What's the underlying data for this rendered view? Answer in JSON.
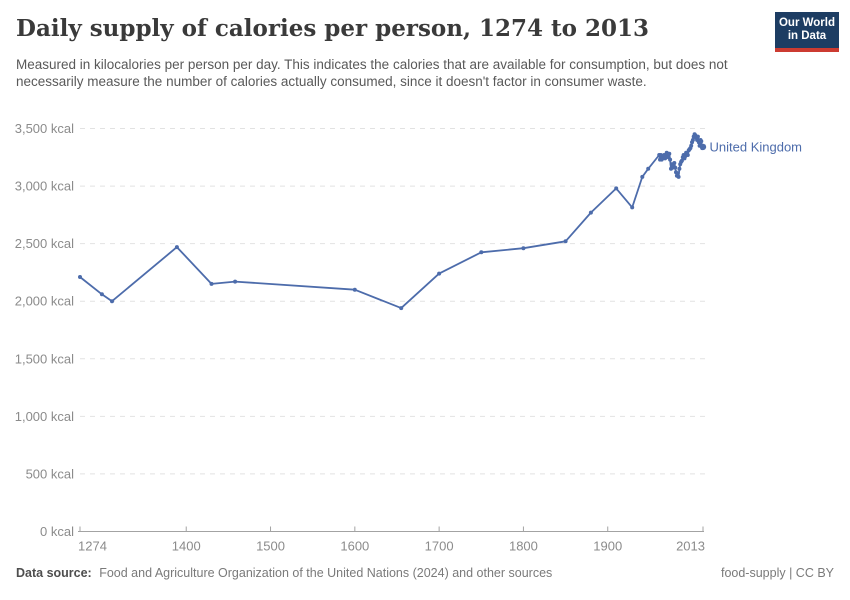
{
  "header": {
    "title": "Daily supply of calories per person, 1274 to 2013",
    "subtitle": "Measured in kilocalories per person per day. This indicates the calories that are available for consumption, but does not necessarily measure the number of calories actually consumed, since it doesn't factor in consumer waste.",
    "logo": {
      "line1": "Our World",
      "line2": "in Data"
    }
  },
  "footer": {
    "source_label": "Data source:",
    "source_text": "Food and Agriculture Organization of the United Nations (2024) and other sources",
    "attribution": "food-supply | CC BY"
  },
  "colors": {
    "line": "#4d6cab",
    "logo_background": "#1d3d63",
    "logo_stripe": "#cc3b31",
    "gridline": "#e2e2e2",
    "axis": "#a3a3a3",
    "tick_label": "#8b8b8b"
  },
  "chart_data": {
    "type": "line",
    "title": "Daily supply of calories per person, 1274 to 2013",
    "xlabel": "",
    "ylabel": "kcal",
    "xlim": [
      1274,
      2013
    ],
    "ylim": [
      0,
      3500
    ],
    "grid": "horizontal-dashed",
    "x_ticks": [
      1274,
      1400,
      1500,
      1600,
      1700,
      1800,
      1900,
      2013
    ],
    "x_tick_labels": [
      "1274",
      "1400",
      "1500",
      "1600",
      "1700",
      "1800",
      "1900",
      "2013"
    ],
    "y_ticks": [
      0,
      500,
      1000,
      1500,
      2000,
      2500,
      3000,
      3500
    ],
    "y_tick_labels": [
      "0 kcal",
      "500 kcal",
      "1,000 kcal",
      "1,500 kcal",
      "2,000 kcal",
      "2,500 kcal",
      "3,000 kcal",
      "3,500 kcal"
    ],
    "legend_position": "end-of-line-label",
    "series": [
      {
        "name": "United Kingdom",
        "color": "#4d6cab",
        "points": [
          [
            1274,
            2210
          ],
          [
            1300,
            2060
          ],
          [
            1312,
            2000
          ],
          [
            1389,
            2470
          ],
          [
            1430,
            2150
          ],
          [
            1458,
            2170
          ],
          [
            1600,
            2100
          ],
          [
            1655,
            1940
          ],
          [
            1700,
            2240
          ],
          [
            1750,
            2425
          ],
          [
            1800,
            2460
          ],
          [
            1850,
            2520
          ],
          [
            1880,
            2770
          ],
          [
            1910,
            2980
          ],
          [
            1929,
            2815
          ],
          [
            1941,
            3080
          ],
          [
            1948,
            3150
          ],
          [
            1961,
            3270
          ],
          [
            1962,
            3230
          ],
          [
            1963,
            3270
          ],
          [
            1964,
            3230
          ],
          [
            1965,
            3240
          ],
          [
            1966,
            3260
          ],
          [
            1967,
            3270
          ],
          [
            1968,
            3240
          ],
          [
            1969,
            3260
          ],
          [
            1970,
            3290
          ],
          [
            1971,
            3280
          ],
          [
            1972,
            3250
          ],
          [
            1973,
            3280
          ],
          [
            1974,
            3230
          ],
          [
            1975,
            3150
          ],
          [
            1976,
            3190
          ],
          [
            1977,
            3160
          ],
          [
            1978,
            3180
          ],
          [
            1979,
            3200
          ],
          [
            1980,
            3160
          ],
          [
            1981,
            3120
          ],
          [
            1982,
            3090
          ],
          [
            1983,
            3110
          ],
          [
            1984,
            3080
          ],
          [
            1985,
            3150
          ],
          [
            1986,
            3190
          ],
          [
            1987,
            3210
          ],
          [
            1988,
            3220
          ],
          [
            1989,
            3250
          ],
          [
            1990,
            3270
          ],
          [
            1991,
            3240
          ],
          [
            1992,
            3260
          ],
          [
            1993,
            3290
          ],
          [
            1994,
            3280
          ],
          [
            1995,
            3270
          ],
          [
            1996,
            3310
          ],
          [
            1997,
            3320
          ],
          [
            1998,
            3330
          ],
          [
            1999,
            3350
          ],
          [
            2000,
            3380
          ],
          [
            2001,
            3400
          ],
          [
            2002,
            3430
          ],
          [
            2003,
            3450
          ],
          [
            2004,
            3440
          ],
          [
            2005,
            3420
          ],
          [
            2006,
            3400
          ],
          [
            2007,
            3430
          ],
          [
            2008,
            3380
          ],
          [
            2009,
            3350
          ],
          [
            2010,
            3400
          ],
          [
            2011,
            3390
          ],
          [
            2012,
            3330
          ],
          [
            2013,
            3340
          ]
        ]
      }
    ]
  }
}
